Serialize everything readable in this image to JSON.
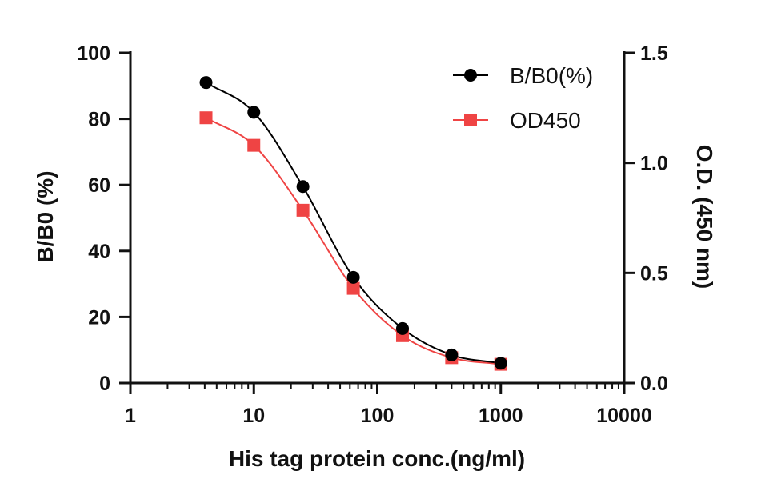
{
  "chart_data": {
    "type": "scatter",
    "x_scale": "log",
    "xlabel": "His tag protein conc.(ng/ml)",
    "ylabel_left": "B/B0 (%)",
    "ylabel_right": "O.D. (450 nm)",
    "xlim": [
      1,
      10000
    ],
    "ylim_left": [
      0,
      100
    ],
    "ylim_right": [
      0,
      1.5
    ],
    "x_ticks": [
      "1",
      "10",
      "100",
      "1000",
      "10000"
    ],
    "y_ticks_left": [
      "0",
      "20",
      "40",
      "60",
      "80",
      "100"
    ],
    "y_ticks_right": [
      "0.0",
      "0.5",
      "1.0",
      "1.5"
    ],
    "grid": false,
    "legend_position": "top-right",
    "series": [
      {
        "name": "B/B0(%)",
        "axis": "left",
        "marker": "circle",
        "color": "#000000",
        "x": [
          4.1,
          10,
          25,
          64,
          160,
          400,
          1000
        ],
        "y": [
          91,
          82,
          59.5,
          32,
          16.5,
          8.5,
          6
        ]
      },
      {
        "name": "OD450",
        "axis": "right",
        "marker": "square",
        "color": "#ef4444",
        "x": [
          4.1,
          10,
          25,
          64,
          160,
          400,
          1000
        ],
        "y": [
          1.205,
          1.08,
          0.785,
          0.43,
          0.215,
          0.115,
          0.085
        ]
      }
    ]
  }
}
